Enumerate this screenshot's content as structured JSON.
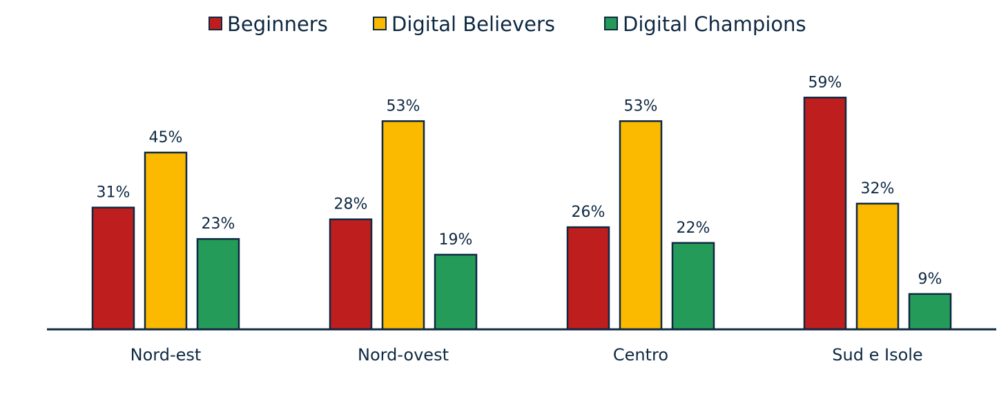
{
  "chart_data": {
    "type": "bar",
    "title": "",
    "xlabel": "",
    "ylabel": "",
    "categories": [
      "Nord-est",
      "Nord-ovest",
      "Centro",
      "Sud e Isole"
    ],
    "series": [
      {
        "name": "Beginners",
        "values": [
          31,
          28,
          26,
          59
        ],
        "labels": [
          "31%",
          "28%",
          "26%",
          "59%"
        ],
        "color": "#BE1E1E"
      },
      {
        "name": "Digital Believers",
        "values": [
          45,
          53,
          53,
          32
        ],
        "labels": [
          "45%",
          "53%",
          "53%",
          "32%"
        ],
        "color": "#FBBA00"
      },
      {
        "name": "Digital Champions",
        "values": [
          23,
          19,
          22,
          9
        ],
        "labels": [
          "23%",
          "19%",
          "22%",
          "9%"
        ],
        "color": "#259B5A"
      }
    ],
    "value_unit": "%",
    "ylim": [
      0,
      62
    ],
    "legend_position": "top-center",
    "grid": false,
    "colors": {
      "text": "#0E2841",
      "bar_outline": "#0E2841",
      "axis": "#0E2841"
    }
  }
}
